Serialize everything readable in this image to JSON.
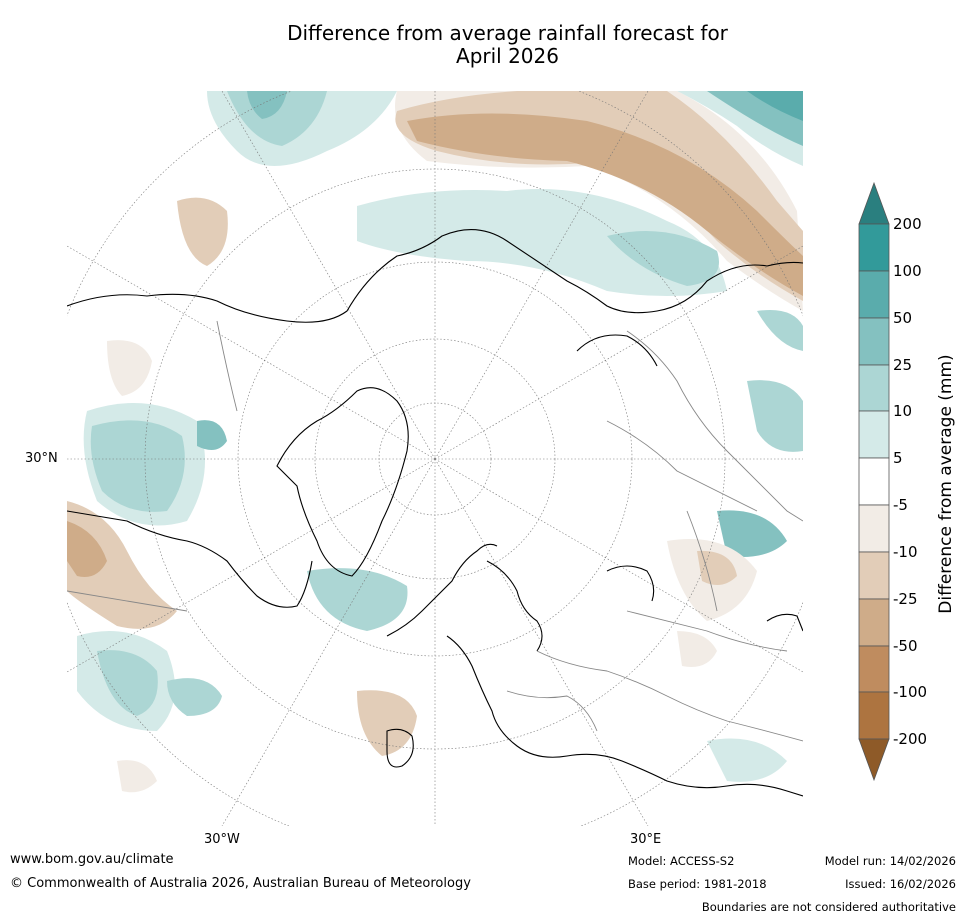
{
  "title_line1": "Difference from average rainfall forecast for",
  "title_line2": "April 2026",
  "map": {
    "projection": "north-polar-stereographic",
    "lat_label": "30°N",
    "lon_labels": [
      "30°W",
      "30°E"
    ]
  },
  "colorbar": {
    "label": "Difference from average (mm)",
    "ticks": [
      "200",
      "100",
      "50",
      "25",
      "10",
      "5",
      "-5",
      "-10",
      "-25",
      "-50",
      "-100",
      "-200"
    ],
    "colors": {
      "over": "#2a7f7f",
      "p100_200": "#329a9a",
      "p50_100": "#5aacac",
      "p25_50": "#84c1c0",
      "p10_25": "#acd6d4",
      "p5_10": "#d4eae8",
      "neutral": "#ffffff",
      "n5_10": "#f2ece6",
      "n10_25": "#e2cdb8",
      "n25_50": "#cfac89",
      "n50_100": "#bf8c5f",
      "n100_200": "#ad7440",
      "under": "#8e5a28"
    }
  },
  "footer": {
    "website": "www.bom.gov.au/climate",
    "copyright": "© Commonwealth of Australia 2026, Australian Bureau of Meteorology",
    "model": "Model: ACCESS-S2",
    "base_period": "Base period: 1981-2018",
    "model_run": "Model run: 14/02/2026",
    "issued": "Issued: 16/02/2026",
    "disclaimer": "Boundaries are not considered authoritative"
  }
}
